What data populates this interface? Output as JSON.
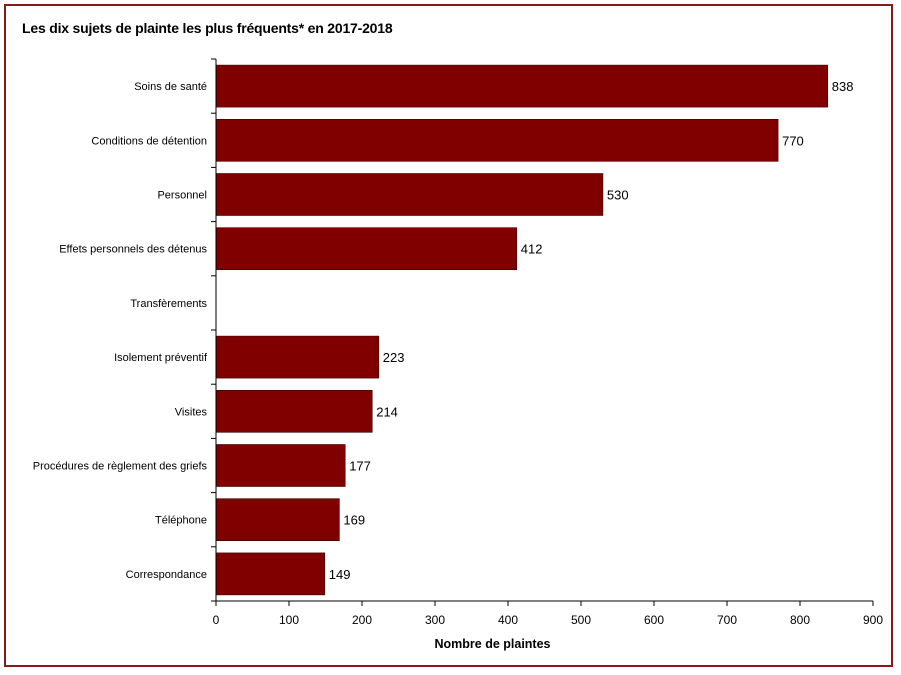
{
  "chart_data": {
    "type": "bar",
    "orientation": "horizontal",
    "title": "Les dix sujets de plainte les plus fréquents* en 2017-2018",
    "xlabel": "Nombre de plaintes",
    "ylabel": "",
    "categories": [
      "Soins de santé",
      "Conditions de détention",
      "Personnel",
      "Effets personnels des détenus",
      "Transfèrements",
      "Isolement préventif",
      "Visites",
      "Procédures de règlement des griefs",
      "Téléphone",
      "Correspondance"
    ],
    "values": [
      838,
      770,
      530,
      412,
      null,
      223,
      214,
      177,
      169,
      149
    ],
    "value_labels": [
      "838",
      "770",
      "530",
      "412",
      "",
      "223",
      "214",
      "177",
      "169",
      "149"
    ],
    "xlim": [
      0,
      900
    ],
    "xticks": [
      0,
      100,
      200,
      300,
      400,
      500,
      600,
      700,
      800,
      900
    ],
    "grid": false,
    "legend": "none",
    "bar_color": "#800000",
    "frame_color": "#8a1a1a"
  }
}
